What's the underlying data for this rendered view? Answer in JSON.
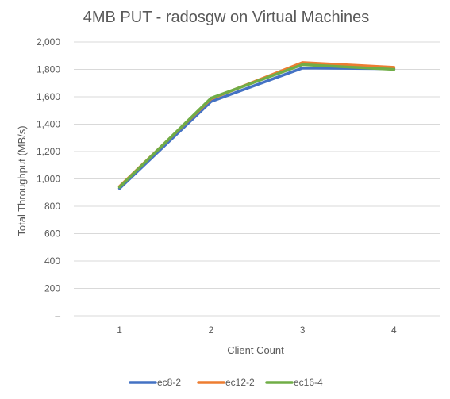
{
  "chart_data": {
    "type": "line",
    "title": "4MB PUT - radosgw on Virtual Machines",
    "xlabel": "Client Count",
    "ylabel": "Total Throughput (MB/s)",
    "categories": [
      "1",
      "2",
      "3",
      "4"
    ],
    "ylim": [
      0,
      2000
    ],
    "yticks": [
      {
        "value": 0,
        "label": "–"
      },
      {
        "value": 200,
        "label": "200"
      },
      {
        "value": 400,
        "label": "400"
      },
      {
        "value": 600,
        "label": "600"
      },
      {
        "value": 800,
        "label": "800"
      },
      {
        "value": 1000,
        "label": "1,000"
      },
      {
        "value": 1200,
        "label": "1,200"
      },
      {
        "value": 1400,
        "label": "1,400"
      },
      {
        "value": 1600,
        "label": "1,600"
      },
      {
        "value": 1800,
        "label": "1,800"
      },
      {
        "value": 2000,
        "label": "2,000"
      }
    ],
    "grid": true,
    "legend": "bottom",
    "series": [
      {
        "name": "ec8-2",
        "color": "#4472c4",
        "values": [
          930,
          1565,
          1810,
          1805
        ]
      },
      {
        "name": "ec12-2",
        "color": "#ed7d31",
        "values": [
          945,
          1585,
          1850,
          1815
        ]
      },
      {
        "name": "ec16-4",
        "color": "#70ad47",
        "values": [
          940,
          1590,
          1835,
          1800
        ]
      }
    ]
  }
}
